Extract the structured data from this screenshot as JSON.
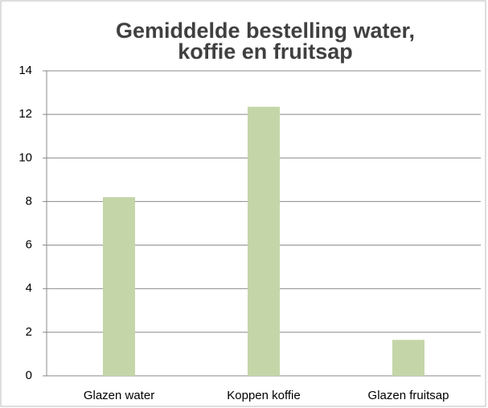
{
  "chart_data": {
    "type": "bar",
    "title": [
      "Gemiddelde bestelling water,",
      "koffie en fruitsap"
    ],
    "categories": [
      "Glazen water",
      "Koppen koffie",
      "Glazen fruitsap"
    ],
    "values": [
      8.2,
      12.35,
      1.65
    ],
    "color": "#c4d6a8",
    "ylim": [
      0,
      14
    ],
    "yticks": [
      0,
      2,
      4,
      6,
      8,
      10,
      12,
      14
    ],
    "grid": true
  }
}
